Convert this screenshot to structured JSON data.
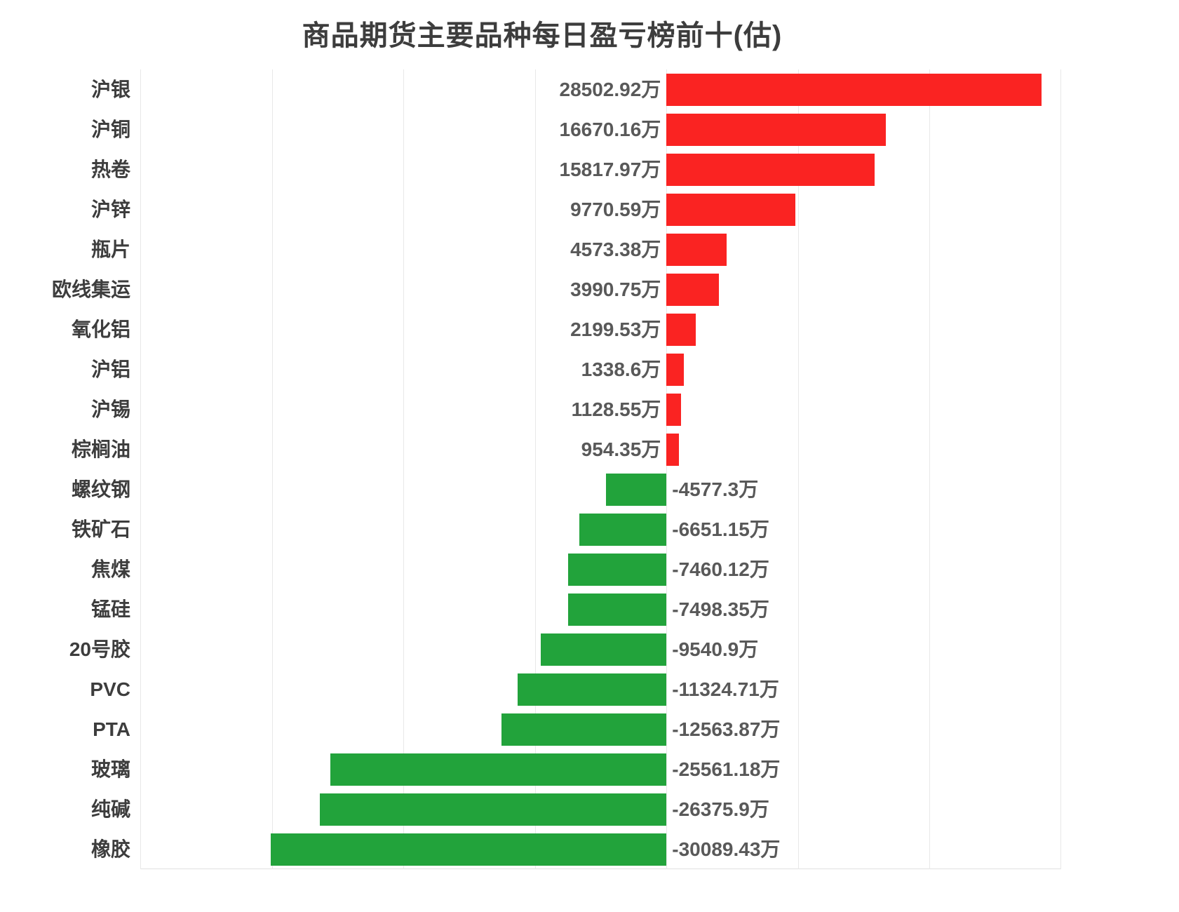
{
  "page": {
    "background": "#ffffff"
  },
  "chart_data": {
    "type": "bar",
    "orientation": "horizontal",
    "title": "商品期货主要品种每日盈亏榜前十(估)",
    "unit": "万",
    "categories": [
      "沪银",
      "沪铜",
      "热卷",
      "沪锌",
      "瓶片",
      "欧线集运",
      "氧化铝",
      "沪铝",
      "沪锡",
      "棕榈油",
      "螺纹钢",
      "铁矿石",
      "焦煤",
      "锰硅",
      "20号胶",
      "PVC",
      "PTA",
      "玻璃",
      "纯碱",
      "橡胶"
    ],
    "values": [
      28502.92,
      16670.16,
      15817.97,
      9770.59,
      4573.38,
      3990.75,
      2199.53,
      1338.6,
      1128.55,
      954.35,
      -4577.3,
      -6651.15,
      -7460.12,
      -7498.35,
      -9540.9,
      -11324.71,
      -12563.87,
      -25561.18,
      -26375.9,
      -30089.43
    ],
    "value_labels": [
      "28502.92万",
      "16670.16万",
      "15817.97万",
      "9770.59万",
      "4573.38万",
      "3990.75万",
      "2199.53万",
      "1338.6万",
      "1128.55万",
      "954.35万",
      "-4577.3万",
      "-6651.15万",
      "-7460.12万",
      "-7498.35万",
      "-9540.9万",
      "-11324.71万",
      "-12563.87万",
      "-25561.18万",
      "-26375.9万",
      "-30089.43万"
    ],
    "xlim": [
      -40000,
      30000
    ],
    "gridline_step": 10000,
    "grid": true,
    "legend": "none",
    "colors": {
      "positive_bar": "#fa2322",
      "negative_bar": "#22a33b",
      "gridline": "#e8e8e8",
      "axis_border": "#e0e0e0",
      "title_text": "#3d3d3d",
      "category_text": "#3d3d3d",
      "value_text": "#595959"
    }
  }
}
